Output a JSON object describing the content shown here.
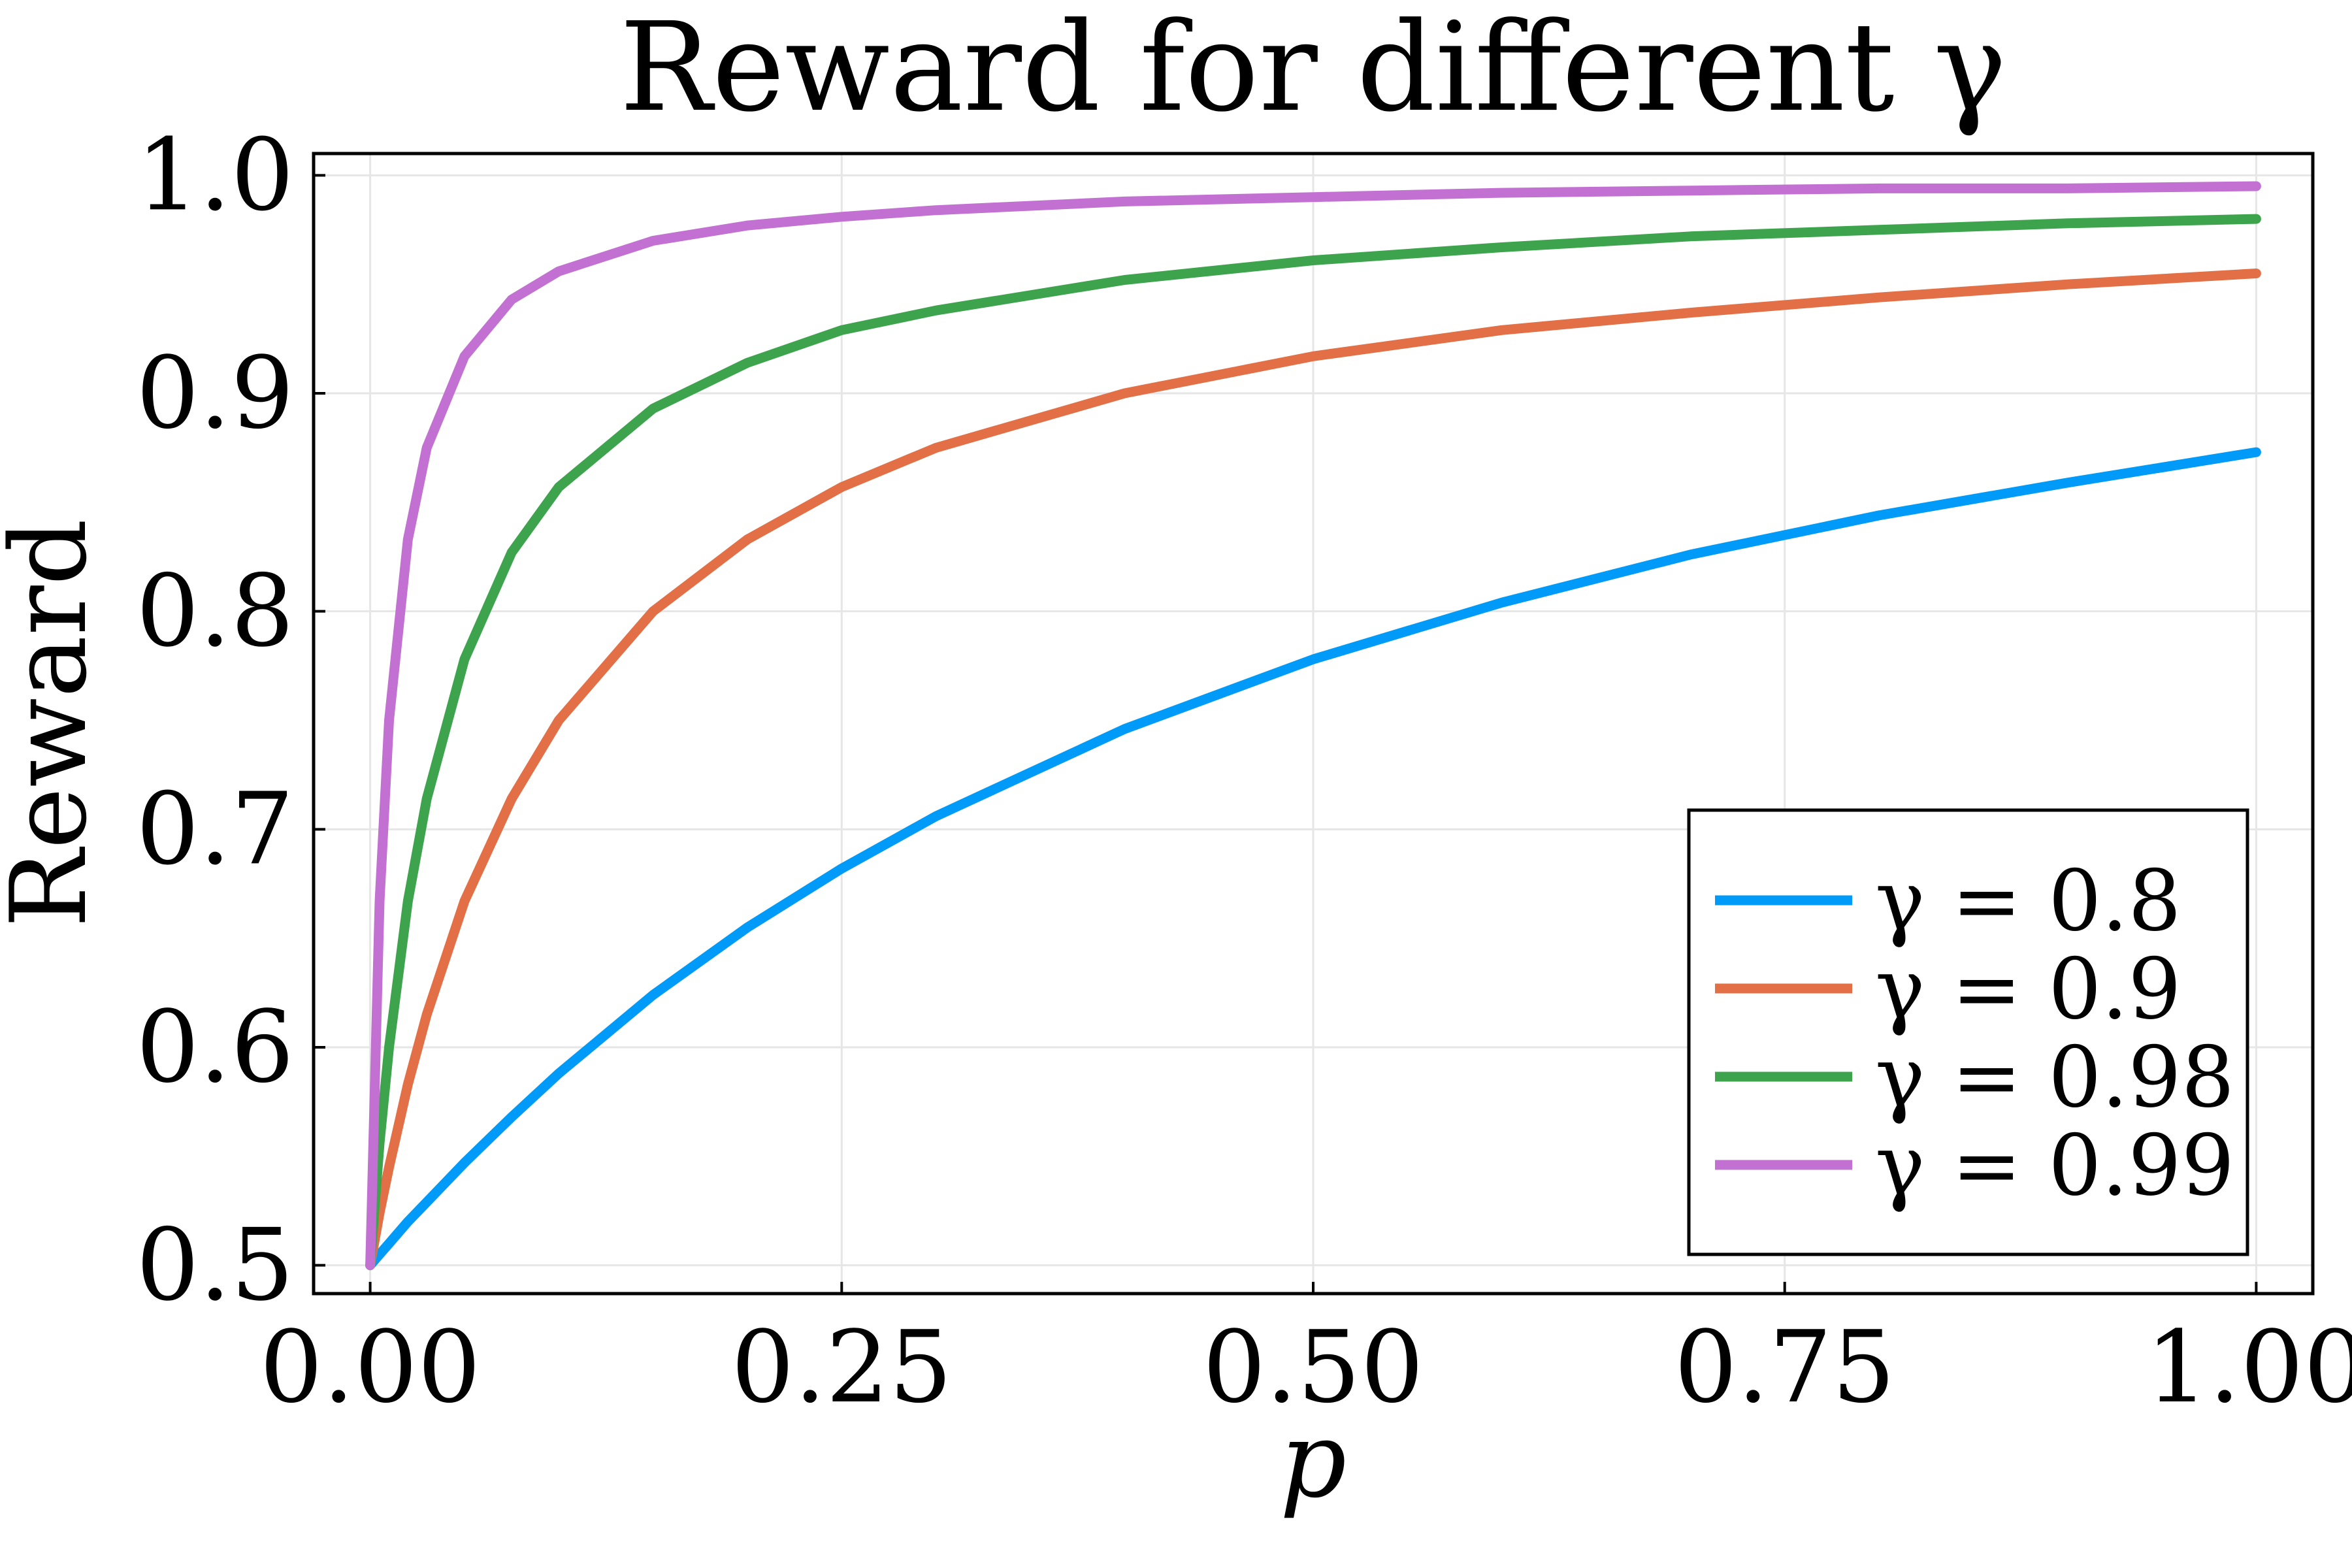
{
  "chart_data": {
    "type": "line",
    "title": "Reward for different γ",
    "xlabel": "p",
    "ylabel": "Reward",
    "xlim": [
      -0.03,
      1.03
    ],
    "ylim": [
      0.487,
      1.01
    ],
    "xticks": [
      0.0,
      0.25,
      0.5,
      0.75,
      1.0
    ],
    "xtick_labels": [
      "0.00",
      "0.25",
      "0.50",
      "0.75",
      "1.00"
    ],
    "yticks": [
      0.5,
      0.6,
      0.7,
      0.8,
      0.9,
      1.0
    ],
    "ytick_labels": [
      "0.5",
      "0.6",
      "0.7",
      "0.8",
      "0.9",
      "1.0"
    ],
    "grid": true,
    "legend_position": "bottom-right",
    "x": [
      0.0,
      0.005,
      0.01,
      0.02,
      0.03,
      0.05,
      0.075,
      0.1,
      0.15,
      0.2,
      0.25,
      0.3,
      0.4,
      0.5,
      0.6,
      0.7,
      0.8,
      0.9,
      1.0
    ],
    "series": [
      {
        "name": "γ = 0.8",
        "color": "#009af9",
        "values": [
          0.5,
          0.505,
          0.51,
          0.52,
          0.529,
          0.547,
          0.568,
          0.588,
          0.624,
          0.655,
          0.682,
          0.706,
          0.746,
          0.778,
          0.804,
          0.826,
          0.844,
          0.859,
          0.873
        ]
      },
      {
        "name": "γ = 0.9",
        "color": "#e26f46",
        "values": [
          0.5,
          0.524,
          0.545,
          0.583,
          0.615,
          0.667,
          0.714,
          0.75,
          0.8,
          0.833,
          0.857,
          0.875,
          0.9,
          0.917,
          0.929,
          0.937,
          0.944,
          0.95,
          0.955
        ]
      },
      {
        "name": "γ = 0.98",
        "color": "#3da44d",
        "values": [
          0.5,
          0.556,
          0.6,
          0.667,
          0.714,
          0.778,
          0.827,
          0.857,
          0.893,
          0.914,
          0.929,
          0.938,
          0.952,
          0.961,
          0.967,
          0.972,
          0.975,
          0.978,
          0.98
        ]
      },
      {
        "name": "γ = 0.99",
        "color": "#c271d2",
        "values": [
          0.5,
          0.667,
          0.75,
          0.833,
          0.875,
          0.917,
          0.943,
          0.956,
          0.97,
          0.977,
          0.981,
          0.984,
          0.988,
          0.99,
          0.992,
          0.993,
          0.994,
          0.994,
          0.995
        ]
      }
    ]
  }
}
